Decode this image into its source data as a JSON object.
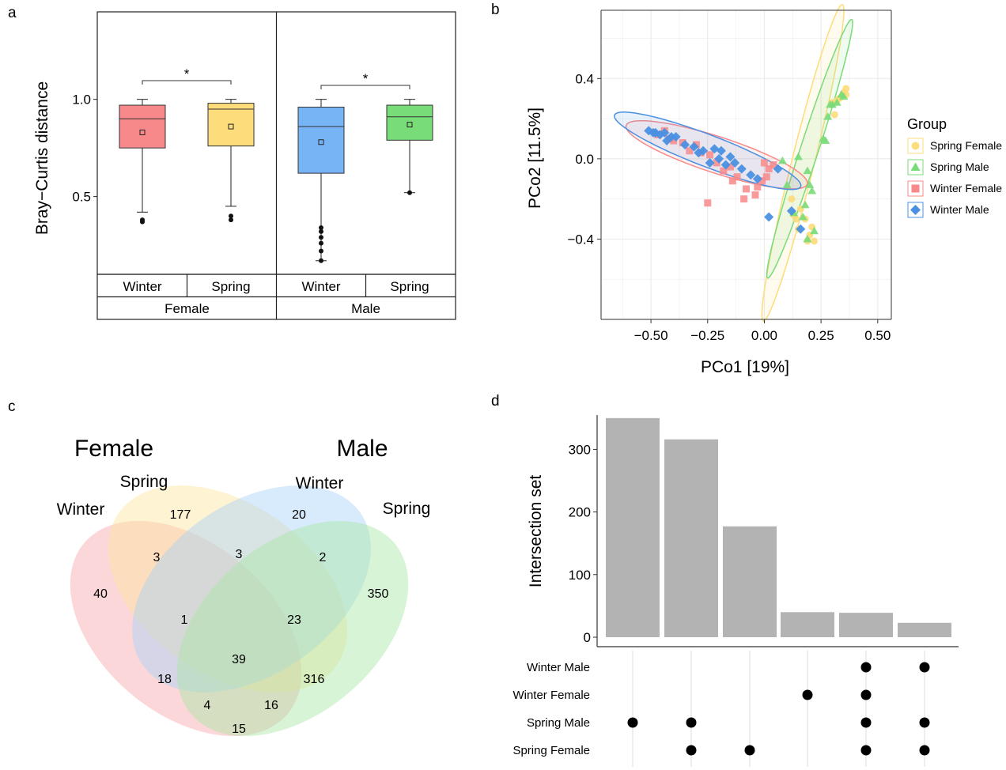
{
  "panels": {
    "a": "a",
    "b": "b",
    "c": "c",
    "d": "d"
  },
  "chart_data": [
    {
      "type": "box",
      "ylabel": "Bray−Curtis distance",
      "ylim": [
        0.1,
        1.45
      ],
      "yticks": [
        0.5,
        1.0
      ],
      "ytick_labels": [
        "0.5",
        "1.0"
      ],
      "groups": [
        {
          "name": "Female",
          "label": "Female",
          "boxes": [
            {
              "label": "Winter",
              "color": "#f8898a",
              "whisker_low": 0.42,
              "q1": 0.75,
              "median": 0.9,
              "q3": 0.97,
              "whisker_high": 1.0,
              "mean": 0.83,
              "outliers": [
                0.37,
                0.38
              ]
            },
            {
              "label": "Spring",
              "color": "#fddc7b",
              "whisker_low": 0.45,
              "q1": 0.76,
              "median": 0.95,
              "q3": 0.98,
              "whisker_high": 1.0,
              "mean": 0.86,
              "outliers": [
                0.38,
                0.4
              ]
            }
          ],
          "significance": "*"
        },
        {
          "name": "Male",
          "label": "Male",
          "boxes": [
            {
              "label": "Winter",
              "color": "#76b4f5",
              "whisker_low": 0.17,
              "q1": 0.62,
              "median": 0.86,
              "q3": 0.96,
              "whisker_high": 1.0,
              "mean": 0.78,
              "outliers": [
                0.17,
                0.22,
                0.26,
                0.29,
                0.32,
                0.34
              ]
            },
            {
              "label": "Spring",
              "color": "#78dc78",
              "whisker_low": 0.52,
              "q1": 0.79,
              "median": 0.91,
              "q3": 0.97,
              "whisker_high": 1.0,
              "mean": 0.87,
              "outliers": [
                0.52
              ]
            }
          ],
          "significance": "*"
        }
      ]
    },
    {
      "type": "scatter",
      "xlabel": "PCo1 [19%]",
      "ylabel": "PCo2 [11.5%]",
      "xlim": [
        -0.72,
        0.56
      ],
      "ylim": [
        -0.8,
        0.74
      ],
      "xticks": [
        -0.5,
        -0.25,
        0.0,
        0.25,
        0.5
      ],
      "xtick_labels": [
        "−0.50",
        "−0.25",
        "0.00",
        "0.25",
        "0.50"
      ],
      "yticks": [
        -0.4,
        0.0,
        0.4
      ],
      "ytick_labels": [
        "−0.4",
        "0.0",
        "0.4"
      ],
      "legend_title": "Group",
      "legend_position": "right",
      "series": [
        {
          "name": "Spring Female",
          "color": "#fddc7b",
          "marker": "circle",
          "ellipse": {
            "cx": 0.17,
            "cy": -0.02,
            "rx": 0.72,
            "ry": 0.05,
            "angle_deg": 76
          },
          "points": [
            [
              0.35,
              0.33
            ],
            [
              0.36,
              0.35
            ],
            [
              0.34,
              0.31
            ],
            [
              0.33,
              0.3
            ],
            [
              0.36,
              0.32
            ],
            [
              0.31,
              0.22
            ],
            [
              0.3,
              0.28
            ],
            [
              0.32,
              0.29
            ],
            [
              0.18,
              -0.3
            ],
            [
              0.2,
              -0.38
            ],
            [
              0.22,
              -0.41
            ],
            [
              0.14,
              -0.3
            ],
            [
              0.12,
              -0.2
            ],
            [
              0.16,
              -0.25
            ],
            [
              0.21,
              -0.34
            ],
            [
              0.19,
              -0.41
            ],
            [
              0.15,
              -0.35
            ],
            [
              0.13,
              -0.28
            ]
          ]
        },
        {
          "name": "Spring Male",
          "color": "#78dc78",
          "marker": "triangle",
          "ellipse": {
            "cx": 0.2,
            "cy": 0.05,
            "rx": 0.6,
            "ry": 0.04,
            "angle_deg": 72
          },
          "points": [
            [
              0.34,
              0.32
            ],
            [
              0.32,
              0.28
            ],
            [
              0.3,
              0.27
            ],
            [
              0.35,
              0.31
            ],
            [
              0.28,
              0.21
            ],
            [
              0.29,
              0.27
            ],
            [
              0.26,
              0.1
            ],
            [
              0.27,
              0.09
            ],
            [
              0.15,
              0.01
            ],
            [
              0.08,
              -0.01
            ],
            [
              0.1,
              -0.13
            ],
            [
              0.19,
              -0.06
            ],
            [
              0.2,
              -0.13
            ],
            [
              0.21,
              -0.16
            ],
            [
              0.18,
              -0.23
            ],
            [
              0.17,
              -0.29
            ],
            [
              0.19,
              -0.4
            ],
            [
              0.13,
              -0.27
            ],
            [
              0.22,
              -0.36
            ]
          ]
        },
        {
          "name": "Winter Female",
          "color": "#f8898a",
          "marker": "square",
          "ellipse": {
            "cx": -0.21,
            "cy": 0.02,
            "rx": 0.42,
            "ry": 0.08,
            "angle_deg": -18
          },
          "points": [
            [
              -0.47,
              0.12
            ],
            [
              -0.44,
              0.14
            ],
            [
              -0.42,
              0.1
            ],
            [
              -0.4,
              0.09
            ],
            [
              -0.36,
              0.08
            ],
            [
              -0.3,
              0.07
            ],
            [
              -0.28,
              0.03
            ],
            [
              -0.24,
              0.02
            ],
            [
              -0.21,
              -0.02
            ],
            [
              -0.18,
              -0.06
            ],
            [
              -0.14,
              -0.11
            ],
            [
              -0.12,
              -0.09
            ],
            [
              -0.08,
              -0.15
            ],
            [
              -0.04,
              -0.18
            ],
            [
              0.0,
              -0.02
            ],
            [
              0.02,
              -0.05
            ],
            [
              0.04,
              -0.03
            ],
            [
              -0.01,
              -0.11
            ],
            [
              0.01,
              -0.09
            ],
            [
              -0.25,
              -0.22
            ],
            [
              -0.09,
              -0.2
            ],
            [
              -0.03,
              -0.14
            ],
            [
              -0.15,
              -0.04
            ],
            [
              -0.33,
              0.04
            ]
          ]
        },
        {
          "name": "Winter Male",
          "color": "#4a90e2",
          "marker": "diamond",
          "ellipse": {
            "cx": -0.25,
            "cy": 0.04,
            "rx": 0.44,
            "ry": 0.07,
            "angle_deg": -21
          },
          "points": [
            [
              -0.51,
              0.14
            ],
            [
              -0.48,
              0.13
            ],
            [
              -0.46,
              0.12
            ],
            [
              -0.49,
              0.13
            ],
            [
              -0.44,
              0.13
            ],
            [
              -0.41,
              0.11
            ],
            [
              -0.39,
              0.11
            ],
            [
              -0.35,
              0.07
            ],
            [
              -0.31,
              0.06
            ],
            [
              -0.27,
              0.04
            ],
            [
              -0.22,
              0.05
            ],
            [
              -0.19,
              0.04
            ],
            [
              -0.15,
              0.01
            ],
            [
              -0.2,
              0.0
            ],
            [
              -0.24,
              -0.02
            ],
            [
              -0.17,
              -0.03
            ],
            [
              -0.13,
              -0.02
            ],
            [
              -0.1,
              -0.05
            ],
            [
              -0.06,
              -0.08
            ],
            [
              -0.03,
              -0.1
            ],
            [
              0.06,
              -0.05
            ],
            [
              0.12,
              -0.26
            ],
            [
              0.16,
              -0.35
            ],
            [
              0.02,
              -0.29
            ],
            [
              -0.29,
              0.03
            ],
            [
              -0.43,
              0.09
            ]
          ]
        }
      ]
    },
    {
      "type": "venn",
      "sex_labels": [
        "Female",
        "Male"
      ],
      "sets": [
        {
          "name": "Winter",
          "color": "#f8a6aa"
        },
        {
          "name": "Spring",
          "color": "#fde59b"
        },
        {
          "name": "Winter",
          "color": "#a9d3f8"
        },
        {
          "name": "Spring",
          "color": "#a8e6a4"
        }
      ],
      "counts": [
        "40",
        "177",
        "20",
        "350",
        "3",
        "3",
        "2",
        "1",
        "23",
        "39",
        "18",
        "316",
        "4",
        "16",
        "15"
      ]
    },
    {
      "type": "bar",
      "ylabel": "Intersection set",
      "ylim": [
        0,
        370
      ],
      "yticks": [
        0,
        100,
        200,
        300
      ],
      "ytick_labels": [
        "0",
        "100",
        "200",
        "300"
      ],
      "values": [
        350,
        316,
        177,
        40,
        39,
        23
      ],
      "set_names": [
        "Winter Male",
        "Winter Female",
        "Spring Male",
        "Spring Female"
      ],
      "matrix": [
        [
          2
        ],
        [
          2,
          3
        ],
        [
          3
        ],
        [
          1
        ],
        [
          0,
          1,
          2,
          3
        ],
        [
          0,
          2,
          3
        ]
      ]
    }
  ]
}
